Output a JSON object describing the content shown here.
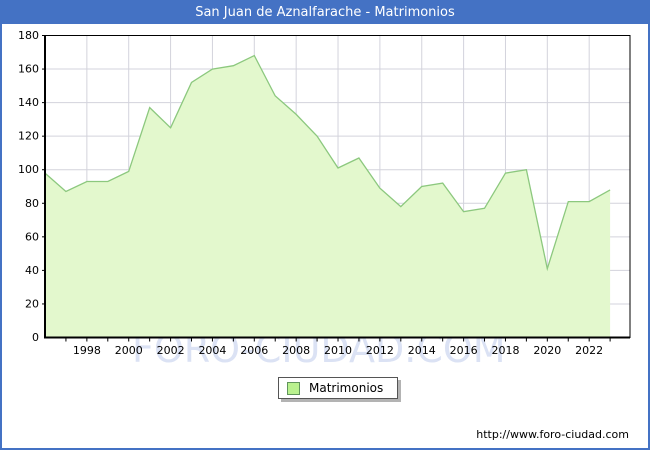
{
  "title": {
    "text": "San Juan de Aznalfarache - Matrimonios"
  },
  "watermark": {
    "text": "FORO-CIUDAD.COM"
  },
  "footer": {
    "url": "http://www.foro-ciudad.com"
  },
  "legend": {
    "label": "Matrimonios"
  },
  "colors": {
    "accent": "#4472c4",
    "area_fill": "#e3f8cd",
    "area_line": "#8cc87e",
    "grid": "#d3d3dc",
    "axis": "#000000",
    "legend_swatch": "#b9f18e",
    "legend_swatch_border": "#60945c",
    "watermark": "#dbe2f4",
    "title_text": "#ffffff"
  },
  "chart_data": {
    "type": "area",
    "title": "San Juan de Aznalfarache - Matrimonios",
    "xlabel": "",
    "ylabel": "",
    "x": [
      1996,
      1997,
      1998,
      1999,
      2000,
      2001,
      2002,
      2003,
      2004,
      2005,
      2006,
      2007,
      2008,
      2009,
      2010,
      2011,
      2012,
      2013,
      2014,
      2015,
      2016,
      2017,
      2018,
      2019,
      2020,
      2021,
      2022,
      2023
    ],
    "series": [
      {
        "name": "Matrimonios",
        "values": [
          98,
          87,
          93,
          93,
          99,
          137,
          125,
          152,
          160,
          162,
          168,
          144,
          133,
          120,
          101,
          107,
          89,
          78,
          90,
          92,
          75,
          77,
          98,
          100,
          41,
          81,
          81,
          88
        ]
      }
    ],
    "ylim": [
      0,
      180
    ],
    "yticks": [
      0,
      20,
      40,
      60,
      80,
      100,
      120,
      140,
      160,
      180
    ],
    "xticks": [
      1998,
      2000,
      2002,
      2004,
      2006,
      2008,
      2010,
      2012,
      2014,
      2016,
      2018,
      2020,
      2022
    ],
    "grid": true,
    "legend_position": "bottom-center"
  }
}
